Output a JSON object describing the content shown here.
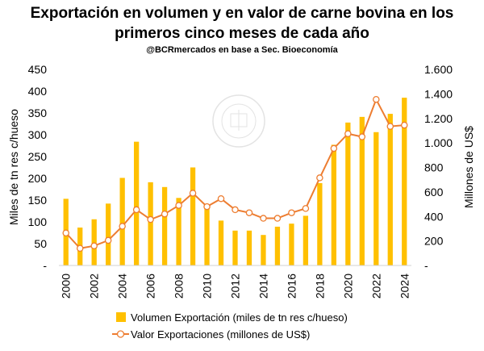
{
  "chart_data": {
    "type": "bar",
    "title_line1": "Exportación en volumen y en valor de carne bovina en los",
    "title_line2": "primeros cinco meses de cada año",
    "subtitle": "@BCRmercados en base a Sec. Bioeconomía",
    "ylabel_left": "Miles de tn res c/hueso",
    "ylabel_right": "Millones de US$",
    "ylim_left": [
      0,
      450
    ],
    "ylim_right": [
      0,
      1600
    ],
    "yticks_left": [
      "-",
      "50",
      "100",
      "150",
      "200",
      "250",
      "300",
      "350",
      "400",
      "450"
    ],
    "yticks_right": [
      "-",
      "200",
      "400",
      "600",
      "800",
      "1.000",
      "1.200",
      "1.400",
      "1.600"
    ],
    "xticks": [
      "2000",
      "2002",
      "2004",
      "2006",
      "2008",
      "2010",
      "2012",
      "2014",
      "2016",
      "2018",
      "2020",
      "2022",
      "2024"
    ],
    "categories": [
      "2000",
      "2001",
      "2002",
      "2003",
      "2004",
      "2005",
      "2006",
      "2007",
      "2008",
      "2009",
      "2010",
      "2011",
      "2012",
      "2013",
      "2014",
      "2015",
      "2016",
      "2017",
      "2018",
      "2019",
      "2020",
      "2021",
      "2022",
      "2023",
      "2024"
    ],
    "series": [
      {
        "name": "Volumen Exportación (miles de tn res c/hueso)",
        "type": "bar",
        "axis": "left",
        "color": "#FFC000",
        "values": [
          153,
          87,
          106,
          142,
          201,
          284,
          191,
          180,
          155,
          225,
          133,
          103,
          80,
          80,
          70,
          89,
          96,
          114,
          189,
          277,
          328,
          341,
          306,
          348,
          385
        ]
      },
      {
        "name": "Valor Exportaciones (millones de US$)",
        "type": "line",
        "axis": "right",
        "color": "#ED7D31",
        "values": [
          265,
          140,
          160,
          205,
          320,
          455,
          375,
          420,
          490,
          590,
          480,
          545,
          455,
          430,
          385,
          385,
          430,
          465,
          715,
          955,
          1075,
          1050,
          1355,
          1135,
          1145
        ]
      }
    ],
    "legend_position": "bottom",
    "grid": false,
    "watermark": "BOLSA DE COMERCIO DE ROSARIO"
  }
}
